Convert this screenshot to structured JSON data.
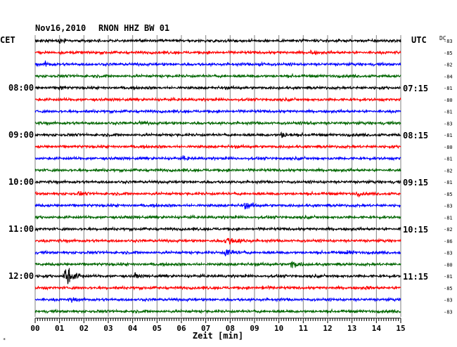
{
  "header": {
    "date": "Nov16,2010",
    "station": "RNON HHZ BW 01",
    "left_tz": "CET",
    "right_tz": "UTC",
    "dc_label": "DC"
  },
  "colors": {
    "trace_cycle": [
      "#000000",
      "#ff0000",
      "#0000ff",
      "#006600"
    ],
    "grid": "#808080",
    "background": "#ffffff"
  },
  "chart_data": {
    "type": "line",
    "title": "Nov16,2010   RNON HHZ BW 01",
    "xlabel": "Zeit [min]",
    "xlim": [
      0,
      15
    ],
    "x_ticks": [
      "00",
      "01",
      "02",
      "03",
      "04",
      "05",
      "06",
      "07",
      "08",
      "09",
      "10",
      "11",
      "12",
      "13",
      "14",
      "15"
    ],
    "rows_per_hour": 4,
    "row_count": 24,
    "left_hour_labels": [
      {
        "row": 4,
        "text": "08:00"
      },
      {
        "row": 8,
        "text": "09:00"
      },
      {
        "row": 12,
        "text": "10:00"
      },
      {
        "row": 16,
        "text": "11:00"
      },
      {
        "row": 20,
        "text": "12:00"
      }
    ],
    "right_hour_labels": [
      {
        "row": 4,
        "text": "07:15"
      },
      {
        "row": 8,
        "text": "08:15"
      },
      {
        "row": 12,
        "text": "09:15"
      },
      {
        "row": 16,
        "text": "10:15"
      },
      {
        "row": 20,
        "text": "11:15"
      }
    ],
    "dc_offsets": [
      "-83",
      "-85",
      "-82",
      "-84",
      "-81",
      "-80",
      "-81",
      "-83",
      "-81",
      "-80",
      "-81",
      "-82",
      "-81",
      "-85",
      "-83",
      "-81",
      "-82",
      "-86",
      "-83",
      "-80",
      "-81",
      "-85",
      "-83",
      "-83"
    ],
    "events": [
      {
        "row": 0,
        "minute": 1.0,
        "amp": 2.0,
        "dur": 0.3
      },
      {
        "row": 1,
        "minute": 11.3,
        "amp": 2.5,
        "dur": 0.4
      },
      {
        "row": 2,
        "minute": 0.4,
        "amp": 2.2,
        "dur": 0.5
      },
      {
        "row": 2,
        "minute": 9.2,
        "amp": 2.0,
        "dur": 0.5
      },
      {
        "row": 4,
        "minute": 1.0,
        "amp": 2.8,
        "dur": 0.3
      },
      {
        "row": 7,
        "minute": 4.3,
        "amp": 1.8,
        "dur": 0.4
      },
      {
        "row": 7,
        "minute": 11.1,
        "amp": 1.8,
        "dur": 0.4
      },
      {
        "row": 8,
        "minute": 10.1,
        "amp": 3.0,
        "dur": 0.6
      },
      {
        "row": 10,
        "minute": 6.1,
        "amp": 1.8,
        "dur": 0.4
      },
      {
        "row": 13,
        "minute": 1.8,
        "amp": 2.0,
        "dur": 0.4
      },
      {
        "row": 13,
        "minute": 13.2,
        "amp": 2.0,
        "dur": 0.4
      },
      {
        "row": 14,
        "minute": 8.6,
        "amp": 3.0,
        "dur": 0.8
      },
      {
        "row": 17,
        "minute": 7.8,
        "amp": 4.0,
        "dur": 1.2
      },
      {
        "row": 18,
        "minute": 7.8,
        "amp": 3.5,
        "dur": 0.9
      },
      {
        "row": 18,
        "minute": 12.8,
        "amp": 2.0,
        "dur": 0.5
      },
      {
        "row": 19,
        "minute": 10.5,
        "amp": 3.0,
        "dur": 0.9
      },
      {
        "row": 20,
        "minute": 1.2,
        "amp": 12.0,
        "dur": 0.8
      },
      {
        "row": 20,
        "minute": 4.1,
        "amp": 2.0,
        "dur": 0.3
      },
      {
        "row": 21,
        "minute": 9.3,
        "amp": 2.0,
        "dur": 0.4
      },
      {
        "row": 21,
        "minute": 13.6,
        "amp": 2.0,
        "dur": 0.3
      },
      {
        "row": 22,
        "minute": 1.5,
        "amp": 2.5,
        "dur": 0.4
      }
    ]
  }
}
